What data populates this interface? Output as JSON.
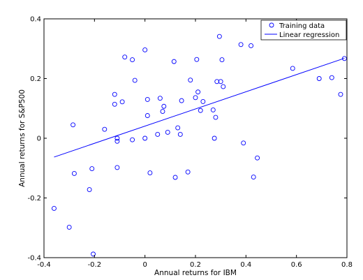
{
  "chart_data": {
    "type": "scatter",
    "xlabel": "Annual returns for IBM",
    "ylabel": "Annual returns for S&P500",
    "xlim": [
      -0.4,
      0.8
    ],
    "ylim": [
      -0.4,
      0.4
    ],
    "xticks": [
      -0.4,
      -0.2,
      0,
      0.2,
      0.4,
      0.6,
      0.8
    ],
    "yticks": [
      -0.4,
      -0.2,
      0,
      0.2,
      0.4
    ],
    "xtick_labels": [
      "-0.4",
      "-0.2",
      "0",
      "0.2",
      "0.4",
      "0.6",
      "0.8"
    ],
    "ytick_labels": [
      "-0.4",
      "-0.2",
      "0",
      "0.2",
      "0.4"
    ],
    "legend_position": "top-right",
    "colors": {
      "points": "#0000ff",
      "line": "#0000ff",
      "axes": "#000000"
    },
    "series": [
      {
        "name": "Training data",
        "kind": "scatter",
        "points": [
          [
            -0.36,
            -0.235
          ],
          [
            -0.3,
            -0.298
          ],
          [
            -0.285,
            0.045
          ],
          [
            -0.28,
            -0.118
          ],
          [
            -0.22,
            -0.172
          ],
          [
            -0.21,
            -0.102
          ],
          [
            -0.205,
            -0.388
          ],
          [
            -0.16,
            0.03
          ],
          [
            -0.12,
            0.147
          ],
          [
            -0.12,
            0.114
          ],
          [
            -0.11,
            0.0
          ],
          [
            -0.11,
            -0.01
          ],
          [
            -0.11,
            -0.098
          ],
          [
            -0.09,
            0.122
          ],
          [
            -0.08,
            0.272
          ],
          [
            -0.05,
            0.263
          ],
          [
            -0.05,
            -0.005
          ],
          [
            -0.04,
            0.194
          ],
          [
            0.0,
            0.296
          ],
          [
            0.0,
            0.0
          ],
          [
            0.01,
            0.076
          ],
          [
            0.01,
            0.13
          ],
          [
            0.02,
            -0.116
          ],
          [
            0.05,
            0.013
          ],
          [
            0.06,
            0.134
          ],
          [
            0.07,
            0.09
          ],
          [
            0.075,
            0.107
          ],
          [
            0.09,
            0.02
          ],
          [
            0.115,
            0.257
          ],
          [
            0.12,
            -0.131
          ],
          [
            0.13,
            0.035
          ],
          [
            0.14,
            0.013
          ],
          [
            0.145,
            0.126
          ],
          [
            0.17,
            -0.113
          ],
          [
            0.18,
            0.195
          ],
          [
            0.2,
            0.136
          ],
          [
            0.205,
            0.264
          ],
          [
            0.21,
            0.155
          ],
          [
            0.22,
            0.093
          ],
          [
            0.23,
            0.123
          ],
          [
            0.27,
            0.095
          ],
          [
            0.275,
            0.0
          ],
          [
            0.28,
            0.07
          ],
          [
            0.285,
            0.19
          ],
          [
            0.295,
            0.341
          ],
          [
            0.3,
            0.19
          ],
          [
            0.305,
            0.263
          ],
          [
            0.31,
            0.173
          ],
          [
            0.38,
            0.314
          ],
          [
            0.39,
            -0.016
          ],
          [
            0.42,
            0.31
          ],
          [
            0.43,
            -0.13
          ],
          [
            0.445,
            -0.066
          ],
          [
            0.585,
            0.234
          ],
          [
            0.69,
            0.2
          ],
          [
            0.74,
            0.203
          ],
          [
            0.775,
            0.147
          ],
          [
            0.79,
            0.267
          ]
        ]
      },
      {
        "name": "Linear regression",
        "kind": "line",
        "points": [
          [
            -0.36,
            -0.063
          ],
          [
            0.79,
            0.268
          ]
        ]
      }
    ]
  }
}
